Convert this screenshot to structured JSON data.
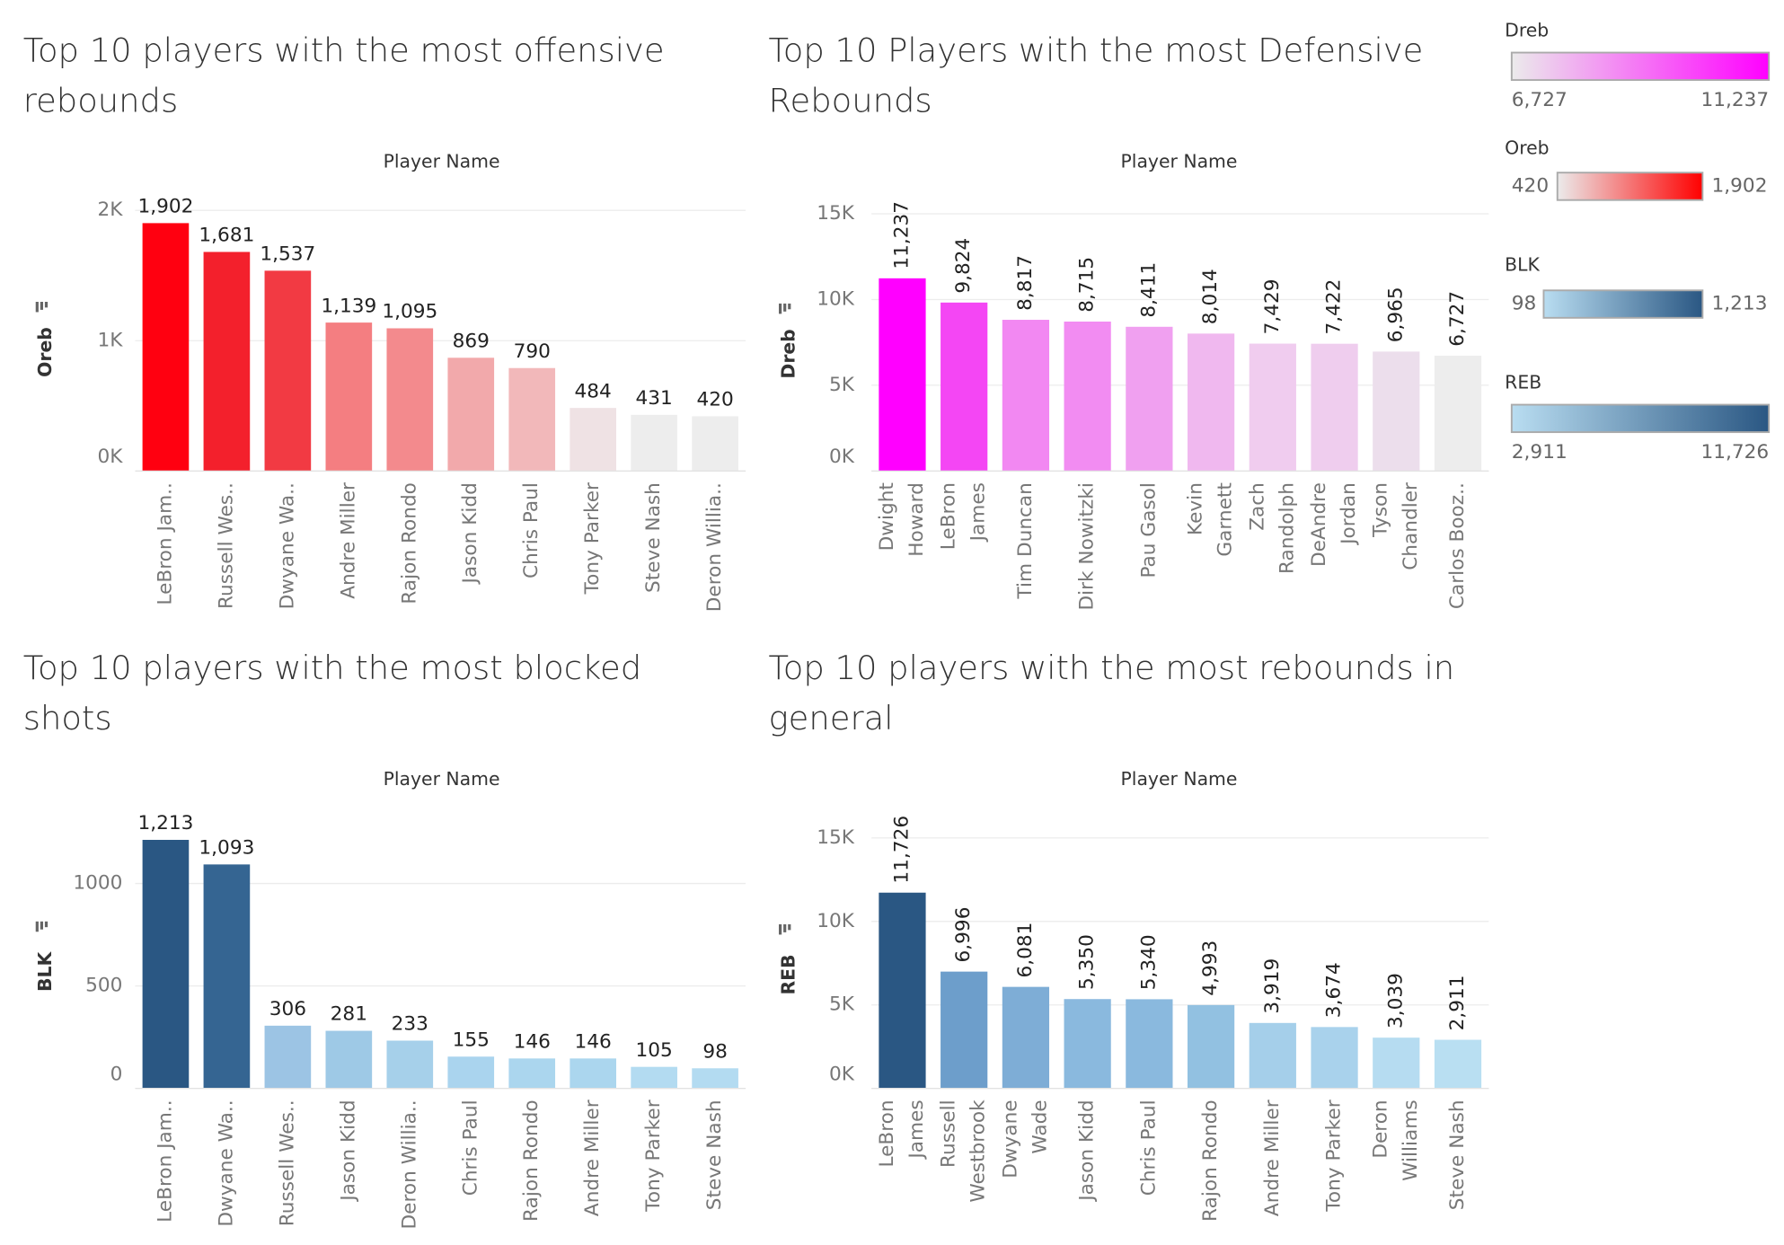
{
  "chart_data": [
    {
      "type": "bar",
      "title": "Top 10 players with the most offensive rebounds",
      "x_header": "Player Name",
      "y_label": "Oreb",
      "categories": [
        "LeBron Jam..",
        "Russell Wes..",
        "Dwyane Wa..",
        "Andre Miller",
        "Rajon Rondo",
        "Jason Kidd",
        "Chris Paul",
        "Tony Parker",
        "Steve Nash",
        "Deron Willia.."
      ],
      "values": [
        1902,
        1681,
        1537,
        1139,
        1095,
        869,
        790,
        484,
        431,
        420
      ],
      "value_labels": [
        "1,902",
        "1,681",
        "1,537",
        "1,139",
        "1,095",
        "869",
        "790",
        "484",
        "431",
        "420"
      ],
      "colors": [
        "#ff0010",
        "#f3202c",
        "#f23a43",
        "#f47e81",
        "#f38a8d",
        "#f2a9ab",
        "#f2b8ba",
        "#efe2e4",
        "#ededed",
        "#ededed"
      ],
      "ylim": [
        0,
        2000
      ],
      "yticks": [
        {
          "value": 0,
          "label": "0K"
        },
        {
          "value": 1000,
          "label": "1K"
        },
        {
          "value": 2000,
          "label": "2K"
        }
      ],
      "grid": true,
      "color_legend": {
        "title": "Oreb",
        "min": {
          "value": 420,
          "label": "420"
        },
        "max": {
          "value": 1902,
          "label": "1,902"
        },
        "colors": [
          "#ebebeb",
          "#ff0000"
        ]
      }
    },
    {
      "type": "bar",
      "title": "Top 10 Players with the most Defensive Rebounds",
      "x_header": "Player Name",
      "y_label": "Dreb",
      "categories": [
        "Dwight\nHoward",
        "LeBron\nJames",
        "Tim Duncan",
        "Dirk Nowitzki",
        "Pau Gasol",
        "Kevin\nGarnett",
        "Zach\nRandolph",
        "DeAndre\nJordan",
        "Tyson\nChandler",
        "Carlos Booz.."
      ],
      "values": [
        11237,
        9824,
        8817,
        8715,
        8411,
        8014,
        7429,
        7422,
        6965,
        6727
      ],
      "value_labels": [
        "11,237",
        "9,824",
        "8,817",
        "8,715",
        "8,411",
        "8,014",
        "7,429",
        "7,422",
        "6,965",
        "6,727"
      ],
      "colors": [
        "#ff00ff",
        "#f446f4",
        "#f288f2",
        "#f28cf2",
        "#f0a0f0",
        "#f0b8ef",
        "#f0ccef",
        "#efcdee",
        "#ecdeec",
        "#ededed"
      ],
      "ylim": [
        0,
        15000
      ],
      "yticks": [
        {
          "value": 0,
          "label": "0K"
        },
        {
          "value": 5000,
          "label": "5K"
        },
        {
          "value": 10000,
          "label": "10K"
        },
        {
          "value": 15000,
          "label": "15K"
        }
      ],
      "grid": true,
      "color_legend": {
        "title": "Dreb",
        "min": {
          "value": 6727,
          "label": "6,727"
        },
        "max": {
          "value": 11237,
          "label": "11,237"
        },
        "colors": [
          "#ebebeb",
          "#ff00ff"
        ]
      }
    },
    {
      "type": "bar",
      "title": "Top 10 players with the most blocked shots",
      "x_header": "Player Name",
      "y_label": "BLK",
      "categories": [
        "LeBron Jam..",
        "Dwyane Wa..",
        "Russell Wes..",
        "Jason Kidd",
        "Deron Willia..",
        "Chris Paul",
        "Rajon Rondo",
        "Andre Miller",
        "Tony Parker",
        "Steve Nash"
      ],
      "values": [
        1213,
        1093,
        306,
        281,
        233,
        155,
        146,
        146,
        105,
        98
      ],
      "value_labels": [
        "1,213",
        "1,093",
        "306",
        "281",
        "233",
        "155",
        "146",
        "146",
        "105",
        "98"
      ],
      "colors": [
        "#2a5783",
        "#356592",
        "#9cc4e4",
        "#9ec9e6",
        "#a6d0ea",
        "#aad4ee",
        "#abd6ee",
        "#abd6ee",
        "#b3dbf1",
        "#b3dbf1"
      ],
      "ylim": [
        0,
        1250
      ],
      "yticks": [
        0,
        500,
        1000
      ],
      "grid": true,
      "color_legend": {
        "title": "BLK",
        "min": {
          "value": 98,
          "label": "98"
        },
        "max": {
          "value": 1213,
          "label": "1,213"
        },
        "colors": [
          "#b9ddf1",
          "#2a5783"
        ]
      }
    },
    {
      "type": "bar",
      "title": "Top 10 players with the most rebounds in general",
      "x_header": "Player Name",
      "y_label": "REB",
      "categories": [
        "LeBron\nJames",
        "Russell\nWestbrook",
        "Dwyane\nWade",
        "Jason Kidd",
        "Chris Paul",
        "Rajon Rondo",
        "Andre Miller",
        "Tony Parker",
        "Deron\nWilliams",
        "Steve Nash"
      ],
      "values": [
        11726,
        6996,
        6081,
        5350,
        5340,
        4993,
        3919,
        3674,
        3039,
        2911
      ],
      "value_labels": [
        "11,726",
        "6,996",
        "6,081",
        "5,350",
        "5,340",
        "4,993",
        "3,919",
        "3,674",
        "3,039",
        "2,911"
      ],
      "colors": [
        "#2a5783",
        "#6d9ecb",
        "#7eadd6",
        "#8ab9de",
        "#8ab9de",
        "#92c1e1",
        "#a5cfea",
        "#a9d2ec",
        "#b6dcf1",
        "#b9dff2"
      ],
      "ylim": [
        0,
        15000
      ],
      "yticks": [
        {
          "value": 0,
          "label": "0K"
        },
        {
          "value": 5000,
          "label": "5K"
        },
        {
          "value": 10000,
          "label": "10K"
        },
        {
          "value": 15000,
          "label": "15K"
        }
      ],
      "grid": true,
      "color_legend": {
        "title": "REB",
        "min": {
          "value": 2911,
          "label": "2,911"
        },
        "max": {
          "value": 11726,
          "label": "11,726"
        },
        "colors": [
          "#b9ddf1",
          "#2a5783"
        ]
      }
    }
  ]
}
